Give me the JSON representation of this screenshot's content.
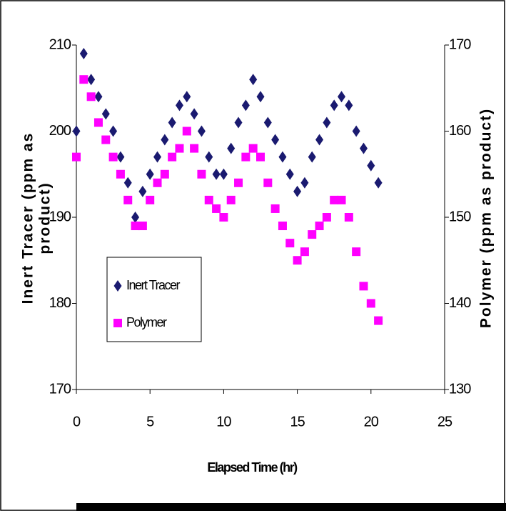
{
  "chart_data": {
    "type": "scatter",
    "xlabel": "Elapsed Time (hr)",
    "ylabel": [
      "Inert Tracer (ppm as",
      "product)"
    ],
    "y2label": "Polymer (ppm as product)",
    "x": [
      0,
      0.5,
      1,
      1.5,
      2,
      2.5,
      3,
      3.5,
      4,
      4.5,
      5,
      5.5,
      6,
      6.5,
      7,
      7.5,
      8,
      8.5,
      9,
      9.5,
      10,
      10.5,
      11,
      11.5,
      12,
      12.5,
      13,
      13.5,
      14,
      14.5,
      15,
      15.5,
      16,
      16.5,
      17,
      17.5,
      18,
      18.5,
      19,
      19.5,
      20,
      20.5
    ],
    "series": [
      {
        "name": "Inert Tracer",
        "color": "#1a1a70",
        "marker": "diamond",
        "values": [
          200,
          209,
          206,
          204,
          202,
          200,
          197,
          194,
          190,
          193,
          195,
          197,
          199,
          201,
          203,
          204,
          202,
          200,
          197,
          195,
          195,
          198,
          201,
          203,
          206,
          204,
          201,
          199,
          197,
          195,
          193,
          194,
          197,
          199,
          201,
          203,
          204,
          203,
          200,
          198,
          196,
          194
        ]
      },
      {
        "name": "Polymer",
        "color": "#ff00ff",
        "marker": "square",
        "axis": "y2",
        "values": [
          157,
          166,
          164,
          161,
          159,
          157,
          155,
          152,
          149,
          149,
          152,
          154,
          155,
          157,
          158,
          160,
          158,
          155,
          152,
          151,
          150,
          152,
          154,
          157,
          158,
          157,
          154,
          151,
          149,
          147,
          145,
          146,
          148,
          149,
          150,
          152,
          152,
          150,
          146,
          142,
          140,
          138
        ]
      }
    ],
    "xlim": [
      0,
      25
    ],
    "xticks": [
      0,
      5,
      10,
      15,
      20,
      25
    ],
    "ylim": [
      170,
      210
    ],
    "yticks": [
      170,
      180,
      190,
      200,
      210
    ],
    "y2lim": [
      130,
      170
    ],
    "y2ticks": [
      130,
      140,
      150,
      160,
      170
    ],
    "legend": "left"
  }
}
